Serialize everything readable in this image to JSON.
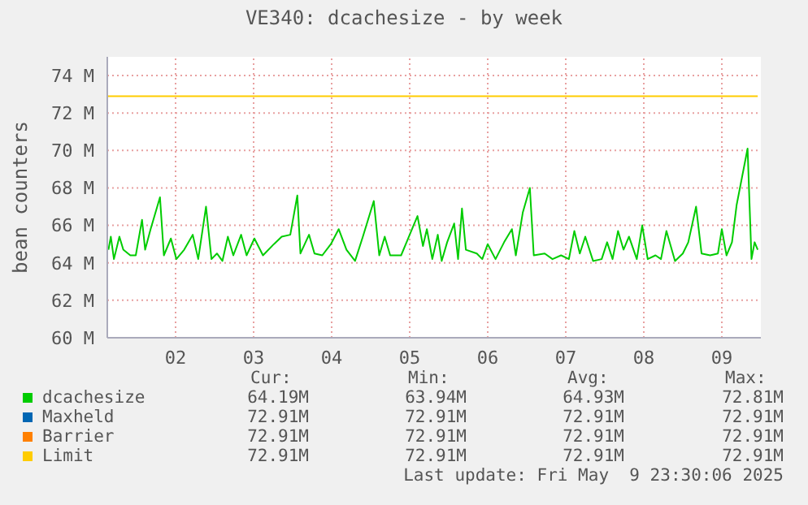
{
  "chart_data": {
    "type": "line",
    "title": "VE340: dcachesize - by week",
    "ylabel": "bean counters",
    "xlim": [
      1.625,
      10
    ],
    "xticks": [
      {
        "value": 2.5,
        "label": "02"
      },
      {
        "value": 3.5,
        "label": "03"
      },
      {
        "value": 4.5,
        "label": "04"
      },
      {
        "value": 5.5,
        "label": "05"
      },
      {
        "value": 6.5,
        "label": "06"
      },
      {
        "value": 7.5,
        "label": "07"
      },
      {
        "value": 8.5,
        "label": "08"
      },
      {
        "value": 9.5,
        "label": "09"
      }
    ],
    "ylim": [
      60,
      75
    ],
    "yticks": [
      {
        "value": 60,
        "label": "60 M"
      },
      {
        "value": 62,
        "label": "62 M"
      },
      {
        "value": 64,
        "label": "64 M"
      },
      {
        "value": 66,
        "label": "66 M"
      },
      {
        "value": 68,
        "label": "68 M"
      },
      {
        "value": 70,
        "label": "70 M"
      },
      {
        "value": 72,
        "label": "72 M"
      },
      {
        "value": 74,
        "label": "74 M"
      }
    ],
    "grid": true,
    "legend": "bottom",
    "marker": "none",
    "line_style": "solid",
    "series": [
      {
        "name": "dcachesize",
        "color": "#00cc00",
        "x": [
          1.64,
          1.67,
          1.71,
          1.78,
          1.83,
          1.92,
          1.99,
          2.07,
          2.11,
          2.18,
          2.3,
          2.35,
          2.44,
          2.51,
          2.61,
          2.72,
          2.79,
          2.89,
          2.96,
          3.03,
          3.1,
          3.17,
          3.24,
          3.34,
          3.41,
          3.51,
          3.62,
          3.76,
          3.86,
          3.97,
          4.06,
          4.1,
          4.21,
          4.28,
          4.38,
          4.49,
          4.59,
          4.69,
          4.8,
          4.9,
          5.04,
          5.11,
          5.18,
          5.25,
          5.39,
          5.46,
          5.6,
          5.67,
          5.72,
          5.79,
          5.86,
          5.91,
          5.98,
          6.07,
          6.12,
          6.17,
          6.22,
          6.36,
          6.43,
          6.5,
          6.6,
          6.71,
          6.81,
          6.86,
          6.95,
          7.04,
          7.09,
          7.23,
          7.33,
          7.44,
          7.54,
          7.61,
          7.68,
          7.75,
          7.85,
          7.96,
          8.03,
          8.1,
          8.17,
          8.24,
          8.31,
          8.41,
          8.48,
          8.55,
          8.65,
          8.72,
          8.79,
          8.9,
          9,
          9.07,
          9.17,
          9.24,
          9.35,
          9.45,
          9.5,
          9.56,
          9.63,
          9.69,
          9.83,
          9.88,
          9.92,
          9.96
        ],
        "values": [
          64.7,
          65.4,
          64.2,
          65.4,
          64.7,
          64.4,
          64.4,
          66.3,
          64.7,
          65.8,
          67.5,
          64.4,
          65.3,
          64.2,
          64.7,
          65.5,
          64.2,
          67.0,
          64.2,
          64.5,
          64.1,
          65.4,
          64.4,
          65.5,
          64.4,
          65.3,
          64.4,
          65.0,
          65.4,
          65.5,
          67.6,
          64.5,
          65.5,
          64.5,
          64.4,
          65.0,
          65.8,
          64.7,
          64.1,
          65.4,
          67.3,
          64.4,
          65.4,
          64.4,
          64.4,
          65.1,
          66.5,
          64.9,
          65.8,
          64.2,
          65.5,
          64.1,
          65.1,
          66.1,
          64.2,
          66.9,
          64.7,
          64.5,
          64.2,
          65.0,
          64.2,
          65.1,
          65.8,
          64.4,
          66.7,
          68.0,
          64.4,
          64.5,
          64.2,
          64.4,
          64.2,
          65.7,
          64.5,
          65.4,
          64.1,
          64.2,
          65.1,
          64.2,
          65.7,
          64.7,
          65.4,
          64.2,
          66.0,
          64.2,
          64.4,
          64.2,
          65.7,
          64.1,
          64.5,
          65.1,
          67.0,
          64.5,
          64.4,
          64.5,
          65.8,
          64.4,
          65.1,
          67.1,
          70.1,
          64.2,
          65.1,
          64.7
        ]
      },
      {
        "name": "Maxheld",
        "color": "#0066b3",
        "values": [
          null,
          null
        ]
      },
      {
        "name": "Barrier",
        "color": "#ff8000",
        "values": [
          null,
          null
        ]
      },
      {
        "name": "Limit",
        "color": "#ffcc00",
        "x": [
          1.625,
          9.96
        ],
        "values": [
          72.9,
          72.9
        ]
      }
    ],
    "annotations": [
      "Cur:",
      "Min:",
      "Avg:",
      "Max:",
      "64.19M",
      "63.94M",
      "64.93M",
      "72.81M",
      "72.91M",
      "72.91M",
      "72.91M",
      "72.91M",
      "72.91M",
      "72.91M",
      "72.91M",
      "72.91M",
      "72.91M",
      "72.91M",
      "72.91M",
      "72.91M",
      "Last update: Fri May  9 23:30:06 2025"
    ]
  }
}
